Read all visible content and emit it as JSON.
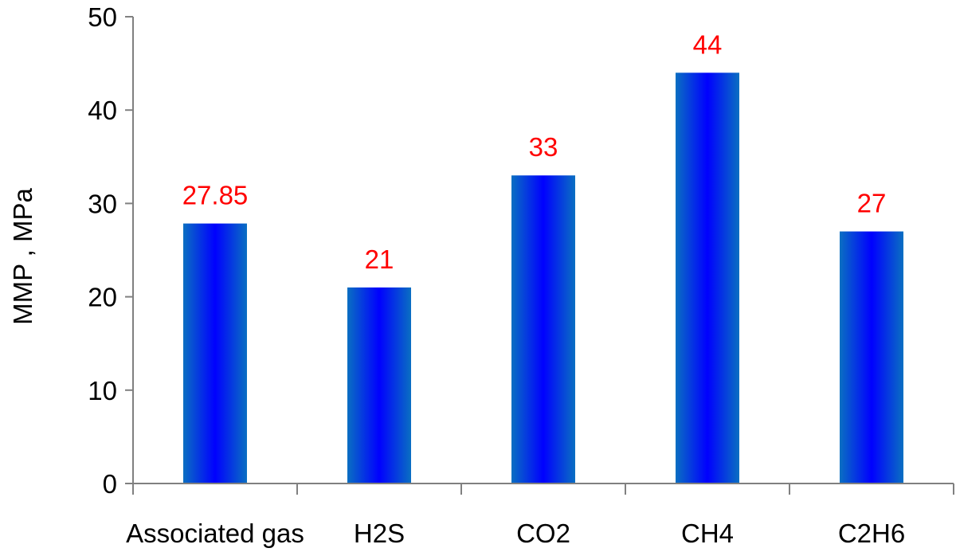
{
  "chart_data": {
    "type": "bar",
    "title": "",
    "xlabel": "",
    "ylabel": "MMP , MPa",
    "categories": [
      "Associated gas",
      "H2S",
      "CO2",
      "CH4",
      "C2H6"
    ],
    "values": [
      27.85,
      21,
      33,
      44,
      27
    ],
    "data_labels": [
      "27.85",
      "21",
      "33",
      "44",
      "27"
    ],
    "ylim": [
      0,
      50
    ],
    "yticks": [
      0,
      10,
      20,
      30,
      40,
      50
    ],
    "grid": false,
    "legend": "none",
    "colors": {
      "bar_edge": "#0a6fc2",
      "bar_center": "#0000ff",
      "data_label": "#ff0000",
      "axis": "#808080",
      "text": "#000000"
    }
  }
}
